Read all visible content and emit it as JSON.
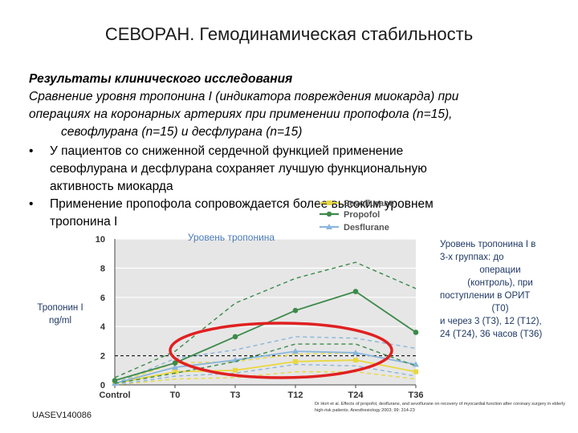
{
  "title": "СЕВОРАН. Гемодинамическая стабильность",
  "intro": {
    "heading": "Результаты клинического исследования",
    "lines": [
      "Сравнение уровня тропонина I (индикатора повреждения миокарда) при",
      "операциях на коронарных артериях при применении пропофола (n=15),",
      "севофлурана (n=15) и десфлурана (n=15)"
    ]
  },
  "bullets": [
    {
      "marker": "•",
      "lines": [
        "У пациентов со сниженной сердечной функцией применение",
        "севофлурана и десфлурана сохраняет лучшую функциональную",
        "активность миокарда"
      ]
    },
    {
      "marker": "•",
      "lines": [
        "Применение пропофола сопровождается более высоким уровнем",
        "тропонина I"
      ]
    }
  ],
  "y_axis_label": [
    "Тропонин I",
    "ng/ml"
  ],
  "side_note": [
    "Уровень тропонина I в",
    "3-х группах: до",
    "операции",
    "(контроль), при",
    "поступлении в ОРИТ",
    "(T0)",
    "и через 3 (T3), 12 (T12),",
    "24 (T24), 36 часов (T36)"
  ],
  "footer_id": "UASEV140086",
  "reference": "Dr Hort et al. Effects of propofol, desflurane, and sevoflurane on recovery of myocardial function after coronary surgery in elderly high-risk patients. Anesthesiology 2003; 99: 314-23",
  "colors": {
    "sevoflurane": "#e8d840",
    "propofol": "#3c8a4a",
    "desflurane": "#8ab6dc",
    "highlight": "#e02020",
    "plot_bg": "#e6e6e6"
  },
  "chart_data": {
    "type": "line",
    "title": "Уровень тропонина",
    "categories": [
      "Control",
      "T0",
      "T3",
      "T12",
      "T24",
      "T36"
    ],
    "ylim": [
      0,
      10
    ],
    "yticks": [
      0,
      2,
      4,
      6,
      8,
      10
    ],
    "threshold": 2,
    "grid": true,
    "legend_position": "top",
    "series": [
      {
        "name": "Sevoflurane",
        "values": [
          0.1,
          0.9,
          1.0,
          1.6,
          1.7,
          0.9
        ],
        "upper": [
          0.1,
          1.5,
          1.6,
          2.1,
          2.2,
          1.4
        ],
        "lower": [
          0.0,
          0.4,
          0.5,
          0.9,
          0.9,
          0.4
        ]
      },
      {
        "name": "Propofol",
        "values": [
          0.3,
          1.5,
          3.3,
          5.1,
          6.4,
          3.6
        ],
        "upper": [
          0.5,
          2.3,
          5.6,
          7.3,
          8.4,
          6.6
        ],
        "lower": [
          0.1,
          0.8,
          1.6,
          2.8,
          2.8,
          1.3
        ]
      },
      {
        "name": "Desflurane",
        "values": [
          0.1,
          1.2,
          1.7,
          2.3,
          2.2,
          1.4
        ],
        "upper": [
          0.1,
          1.8,
          2.4,
          3.3,
          3.2,
          2.5
        ],
        "lower": [
          0.0,
          0.6,
          0.8,
          1.4,
          1.3,
          0.6
        ]
      }
    ]
  }
}
